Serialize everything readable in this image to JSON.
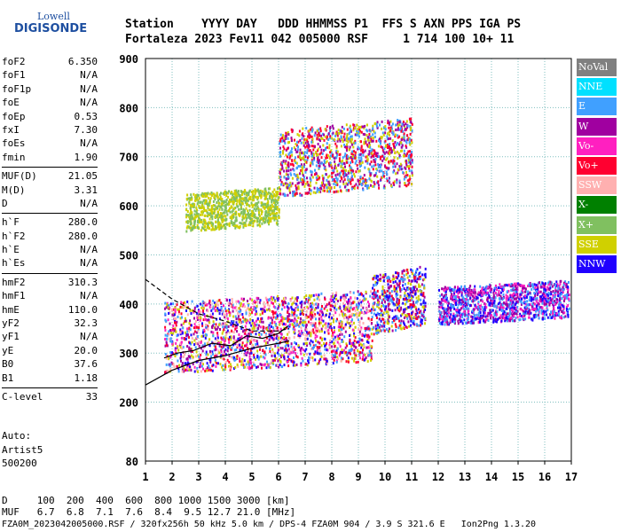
{
  "logo": {
    "line1": "Lowell",
    "line2": "DIGISONDE"
  },
  "header": {
    "row1": "Station    YYYY DAY   DDD HHMMSS P1  FFS S AXN PPS IGA PS",
    "row2": "Fortaleza 2023 Fev11 042 005000 RSF     1 714 100 10+ 11"
  },
  "params": {
    "group1": [
      {
        "name": "foF2",
        "value": "6.350"
      },
      {
        "name": "foF1",
        "value": "N/A"
      },
      {
        "name": "foF1p",
        "value": "N/A"
      },
      {
        "name": "foE",
        "value": "N/A"
      },
      {
        "name": "foEp",
        "value": "0.53"
      },
      {
        "name": "fxI",
        "value": "7.30"
      },
      {
        "name": "foEs",
        "value": "N/A"
      },
      {
        "name": "fmin",
        "value": "1.90"
      }
    ],
    "group2": [
      {
        "name": "MUF(D)",
        "value": "21.05"
      },
      {
        "name": "M(D)",
        "value": "3.31"
      },
      {
        "name": "D",
        "value": "N/A"
      }
    ],
    "group3": [
      {
        "name": "h`F",
        "value": "280.0"
      },
      {
        "name": "h`F2",
        "value": "280.0"
      },
      {
        "name": "h`E",
        "value": "N/A"
      },
      {
        "name": "h`Es",
        "value": "N/A"
      }
    ],
    "group4": [
      {
        "name": "hmF2",
        "value": "310.3"
      },
      {
        "name": "hmF1",
        "value": "N/A"
      },
      {
        "name": "hmE",
        "value": "110.0"
      },
      {
        "name": "yF2",
        "value": "32.3"
      },
      {
        "name": "yF1",
        "value": "N/A"
      },
      {
        "name": "yE",
        "value": "20.0"
      },
      {
        "name": "B0",
        "value": "37.6"
      },
      {
        "name": "B1",
        "value": "1.18"
      }
    ],
    "group5": [
      {
        "name": "C-level",
        "value": "33"
      }
    ]
  },
  "auto": {
    "line1": "Auto:",
    "line2": "Artist5",
    "line3": "500200"
  },
  "legend": [
    {
      "label": "NoVal",
      "color": "#808080"
    },
    {
      "label": "NNE",
      "color": "#00e0ff"
    },
    {
      "label": "E",
      "color": "#40a0ff"
    },
    {
      "label": "W",
      "color": "#a000a0"
    },
    {
      "label": "Vo-",
      "color": "#ff20c0"
    },
    {
      "label": "Vo+",
      "color": "#ff0030"
    },
    {
      "label": "SSW",
      "color": "#ffb0b0"
    },
    {
      "label": "X-",
      "color": "#008000"
    },
    {
      "label": "X+",
      "color": "#80c060"
    },
    {
      "label": "SSE",
      "color": "#d0d000"
    },
    {
      "label": "NNW",
      "color": "#2000ff"
    }
  ],
  "bottom": {
    "row1": "D     100  200  400  600  800 1000 1500 3000 [km]",
    "row2": "MUF   6.7  6.8  7.1  7.6  8.4  9.5 12.7 21.0 [MHz]",
    "row3": "FZA0M_2023042005000.RSF / 320fx256h 50 kHz 5.0 km / DPS-4 FZA0M 904 / 3.9 S 321.6 E   Ion2Png 1.3.20"
  },
  "chart_data": {
    "type": "scatter",
    "xlim": [
      1,
      17
    ],
    "ylim": [
      80,
      900
    ],
    "x_ticks": [
      1,
      2,
      3,
      4,
      5,
      6,
      7,
      8,
      9,
      10,
      11,
      12,
      13,
      14,
      15,
      16,
      17
    ],
    "y_ticks": [
      80,
      200,
      300,
      400,
      500,
      600,
      700,
      800,
      900
    ],
    "grid": true,
    "clusters": [
      {
        "name": "F-trace",
        "x": [
          1.7,
          9.5
        ],
        "y": [
          260,
          430
        ],
        "colors": [
          "#ff0030",
          "#ff20c0",
          "#a000a0",
          "#40a0ff",
          "#ffb0b0",
          "#d0d000",
          "#2000ff"
        ]
      },
      {
        "name": "F-trace-hi",
        "x": [
          9.5,
          11.5
        ],
        "y": [
          340,
          480
        ],
        "colors": [
          "#2000ff",
          "#d0d000",
          "#40a0ff",
          "#a000a0",
          "#ff0030"
        ]
      },
      {
        "name": "X-trace",
        "x": [
          12,
          16.9
        ],
        "y": [
          360,
          450
        ],
        "colors": [
          "#40a0ff",
          "#a000a0",
          "#ff20c0",
          "#2000ff"
        ]
      },
      {
        "name": "2F-trace",
        "x": [
          2.5,
          6.0
        ],
        "y": [
          550,
          640
        ],
        "colors": [
          "#d0d000",
          "#80c060"
        ]
      },
      {
        "name": "2F-trace-hi",
        "x": [
          6.0,
          11.0
        ],
        "y": [
          620,
          780
        ],
        "colors": [
          "#d0d000",
          "#40a0ff",
          "#a000a0",
          "#ff0030"
        ]
      }
    ],
    "profile": [
      [
        1.7,
        290
      ],
      [
        2.2,
        300
      ],
      [
        2.8,
        305
      ],
      [
        3.5,
        320
      ],
      [
        4.2,
        315
      ],
      [
        4.8,
        335
      ],
      [
        5.4,
        330
      ],
      [
        6.0,
        340
      ],
      [
        6.35,
        355
      ]
    ],
    "profile_low": [
      [
        1.0,
        235
      ],
      [
        2.0,
        265
      ],
      [
        3.0,
        285
      ],
      [
        4.0,
        295
      ],
      [
        5.0,
        310
      ],
      [
        6.0,
        320
      ],
      [
        6.4,
        325
      ]
    ],
    "profile_high": [
      [
        1.0,
        450
      ],
      [
        2.0,
        410
      ],
      [
        3.0,
        380
      ],
      [
        4.0,
        365
      ],
      [
        5.0,
        345
      ],
      [
        6.0,
        345
      ],
      [
        6.4,
        350
      ]
    ]
  }
}
